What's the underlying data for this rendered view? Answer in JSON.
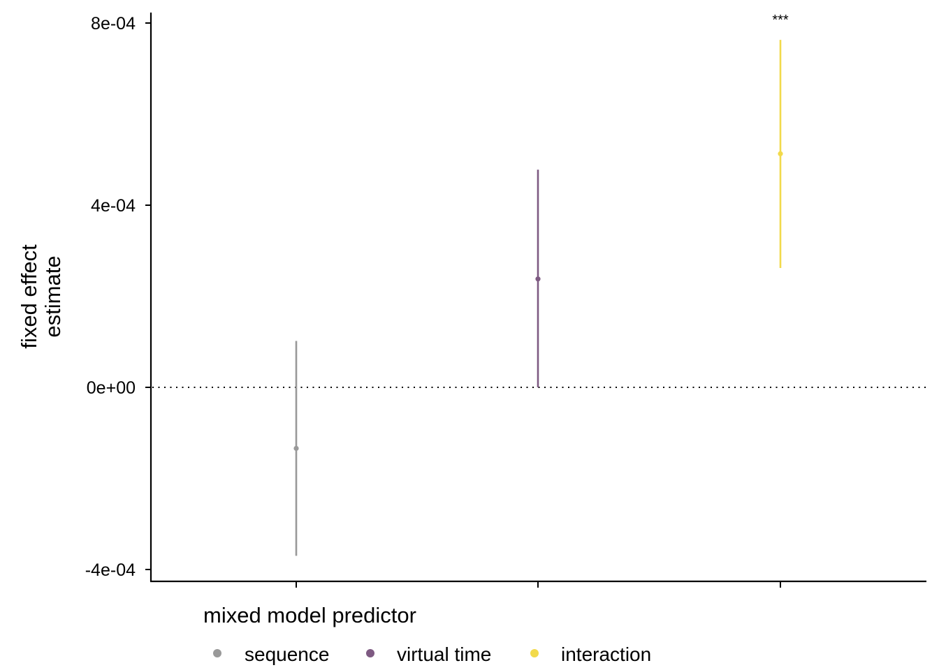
{
  "chart_data": {
    "type": "errorbar",
    "title": "",
    "xlabel": "",
    "ylabel": "fixed effect\nestimate",
    "ylim": [
      -0.00042,
      0.00082
    ],
    "yticks": [
      "8e-04",
      "4e-04",
      "0e+00",
      "-4e-04"
    ],
    "ytick_values": [
      0.0008,
      0.0004,
      0.0,
      -0.0004
    ],
    "reference_line": {
      "y": 0,
      "style": "dotted"
    },
    "grid": false,
    "legend": {
      "title": "mixed model predictor",
      "position": "bottom",
      "entries": [
        "sequence",
        "virtual time",
        "interaction"
      ]
    },
    "series": [
      {
        "name": "sequence",
        "color": "#999999",
        "estimate": -0.000134,
        "lower": -0.00037,
        "upper": 0.000102,
        "annotation": ""
      },
      {
        "name": "virtual time",
        "color": "#7E5A82",
        "estimate": 0.000238,
        "lower": 0.0,
        "upper": 0.000478,
        "annotation": ""
      },
      {
        "name": "interaction",
        "color": "#F2DA4B",
        "estimate": 0.000513,
        "lower": 0.000262,
        "upper": 0.000763,
        "annotation": "***"
      }
    ]
  }
}
